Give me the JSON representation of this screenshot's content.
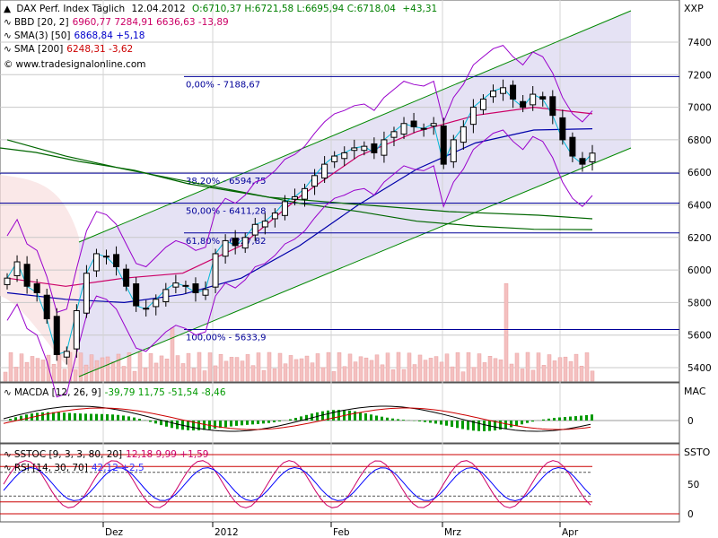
{
  "header": {
    "title": "DAX Perf. Index Täglich",
    "date": "12.04.2012",
    "ohlc": "O:6710,37 H:6721,58 L:6695,94 C:6718,04",
    "change": "+43,31",
    "symbol": "XXP"
  },
  "legend": [
    {
      "icon": "bollinger-icon",
      "label": "BBD [20, 2]",
      "values": "6960,77 7284,91 6636,63 -13,89",
      "color": "#cc0066"
    },
    {
      "icon": "sma-icon",
      "label": "SMA(3) [50]",
      "values": "6868,84 +5,18",
      "color": "#0000cc"
    },
    {
      "icon": "sma-icon",
      "label": "SMA [200]",
      "values": "6248,31 -3,62",
      "color": "#cc0000"
    }
  ],
  "website": "www.tradesignalonline.com",
  "colors": {
    "bollinger": "#cc0066",
    "bandEnvelope": "#9900cc",
    "sma50": "#0000aa",
    "sma200": "#006600",
    "channel": "#008800",
    "fib": "#000099",
    "volume": "#f4c0c0",
    "macdLine": "#000000",
    "macdSignal": "#cc0000",
    "macdHist": "#009900",
    "rsi": "#0000ff",
    "stoc": "#cc0066",
    "panelFill": "#dcd8f0"
  },
  "chart_data": [
    {
      "type": "line",
      "panel": "price",
      "instrument": "DAX Perf. Index",
      "ylim": [
        5300,
        7650
      ],
      "yticks": [
        5400,
        5600,
        5800,
        6000,
        6200,
        6400,
        6600,
        6800,
        7000,
        7200,
        7400
      ],
      "ytick_labels": [
        "5400",
        "5600",
        "5800",
        "6000",
        "6200",
        "6400",
        "6600",
        "6800",
        "7000",
        "7200",
        "7400"
      ],
      "xticks": [
        "Dez",
        "2012",
        "Feb",
        "Mrz",
        "Apr"
      ],
      "series": [
        {
          "name": "BBD [20, 2]",
          "x": [
            0,
            10,
            20,
            30,
            40,
            50,
            60,
            70,
            80,
            90,
            100
          ],
          "y": [
            5950,
            5900,
            5950,
            5980,
            6150,
            6450,
            6700,
            6850,
            6950,
            7000,
            6960
          ]
        },
        {
          "name": "SMA(3) [50]",
          "x": [
            0,
            10,
            20,
            30,
            40,
            50,
            60,
            70,
            80,
            90,
            100
          ],
          "y": [
            5860,
            5820,
            5800,
            5850,
            5950,
            6150,
            6400,
            6620,
            6780,
            6860,
            6868
          ]
        },
        {
          "name": "SMA [200]",
          "x": [
            0,
            10,
            20,
            30,
            40,
            50,
            60,
            70,
            80,
            90,
            100
          ],
          "y": [
            6800,
            6700,
            6620,
            6550,
            6480,
            6410,
            6360,
            6300,
            6270,
            6250,
            6248
          ]
        }
      ],
      "closes": [
        5950,
        6050,
        5900,
        5860,
        5700,
        5480,
        5500,
        5750,
        5980,
        6100,
        6080,
        6020,
        5900,
        5780,
        5760,
        5820,
        5880,
        5920,
        5900,
        5860,
        5880,
        6100,
        6180,
        6150,
        6200,
        6280,
        6300,
        6350,
        6420,
        6450,
        6500,
        6580,
        6650,
        6700,
        6720,
        6750,
        6760,
        6720,
        6800,
        6850,
        6900,
        6880,
        6870,
        6900,
        6650,
        6800,
        6880,
        7000,
        7050,
        7100,
        7120,
        7050,
        7000,
        7080,
        7050,
        6950,
        6800,
        6700,
        6650,
        6718
      ],
      "fib_levels": [
        {
          "label": "0,00% - 7188,67",
          "value": 7188.67
        },
        {
          "label": "38,20% - 6594,75",
          "value": 6594.75
        },
        {
          "label": "50,00% - 6411,28",
          "value": 6411.28
        },
        {
          "label": "61,80% - 6227,82",
          "value": 6227.82
        },
        {
          "label": "100,00% - 5633,9",
          "value": 5633.9
        }
      ]
    },
    {
      "type": "bar",
      "panel": "macd",
      "label": "MACDA [12, 26, 9]",
      "values_text": "-39,79 11,75 -51,54 -8,46",
      "symbol": "MAC",
      "yticks": [
        0
      ],
      "ytick_labels": [
        "0"
      ]
    },
    {
      "type": "line",
      "panel": "oscillators",
      "series": [
        {
          "name": "SSTOC [9, 3, 3, 80, 20]",
          "values_text": "12,18 9,99 +1,59"
        },
        {
          "name": "RSI [14, 30, 70]",
          "values_text": "42,12 +2,5"
        }
      ],
      "symbol": "SSTO",
      "yticks": [
        0,
        50
      ],
      "ytick_labels": [
        "0",
        "50"
      ]
    }
  ]
}
